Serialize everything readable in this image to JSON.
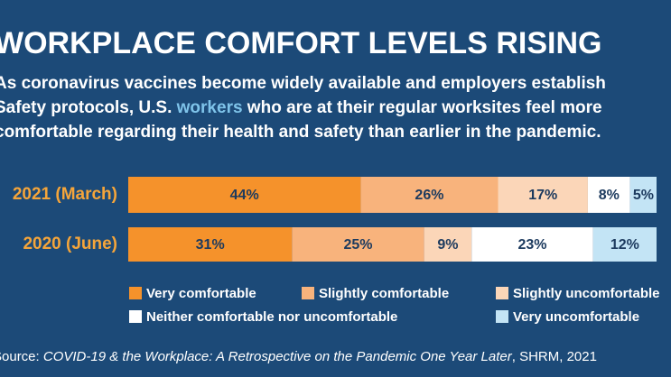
{
  "chart_data": {
    "type": "stacked-bar",
    "title": "WORKPLACE COMFORT LEVELS RISING",
    "subtitle": [
      [
        "As coronavirus vaccines become widely available and employers establish"
      ],
      [
        "Safety protocols, U.S. ",
        "workers",
        " who are at their regular worksites feel more"
      ],
      [
        "comfortable regarding their health and safety than earlier in the pandemic."
      ]
    ],
    "categories": [
      "2021 (March)",
      "2020 (June)"
    ],
    "xlim": [
      0,
      100
    ],
    "series": [
      {
        "name": "Very comfortable",
        "color": "#f5922b",
        "values": [
          44,
          31
        ],
        "value_labels": [
          "44%",
          "31%"
        ]
      },
      {
        "name": "Slightly comfortable",
        "color": "#f8b37c",
        "values": [
          26,
          25
        ],
        "value_labels": [
          "26%",
          "25%"
        ]
      },
      {
        "name": "Slightly uncomfortable",
        "color": "#fbd6b8",
        "values": [
          17,
          9
        ],
        "value_labels": [
          "17%",
          "9%"
        ]
      },
      {
        "name": "Neither comfortable nor uncomfortable",
        "color": "#ffffff",
        "values": [
          8,
          23
        ],
        "value_labels": [
          "8%",
          "23%"
        ]
      },
      {
        "name": "Very uncomfortable",
        "color": "#c3e4f5",
        "values": [
          5,
          12
        ],
        "value_labels": [
          "5%",
          "12%"
        ]
      }
    ],
    "source": {
      "prefix": "Source: ",
      "title": "COVID-19 & the Workplace: A Retrospective on the Pandemic One Year Later",
      "suffix": ", SHRM, 2021"
    }
  }
}
